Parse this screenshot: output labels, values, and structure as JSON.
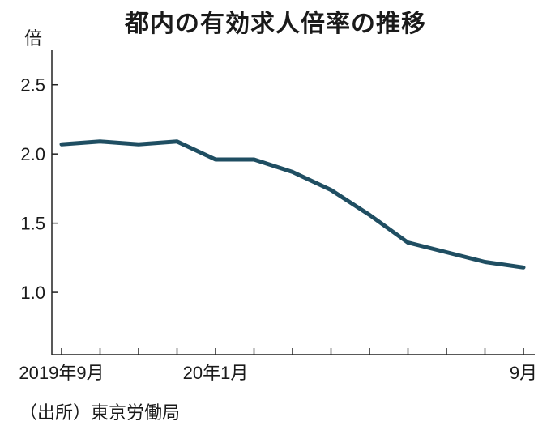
{
  "chart_data": {
    "type": "line",
    "title": "都内の有効求人倍率の推移",
    "ylabel": "倍",
    "source": "（出所）東京労働局",
    "x_labels": [
      "2019年9月",
      "20年1月",
      "9月"
    ],
    "x": [
      "2019-09",
      "2019-10",
      "2019-11",
      "2019-12",
      "2020-01",
      "2020-02",
      "2020-03",
      "2020-04",
      "2020-05",
      "2020-06",
      "2020-07",
      "2020-08",
      "2020-09"
    ],
    "series": [
      {
        "values": [
          2.07,
          2.09,
          2.07,
          2.09,
          1.96,
          1.96,
          1.87,
          1.74,
          1.56,
          1.36,
          1.29,
          1.22,
          1.18
        ]
      }
    ],
    "ylim": [
      0.55,
      2.75
    ],
    "yticks": [
      "2.5",
      "2.0",
      "1.5",
      "1.0"
    ],
    "ytick_values": [
      2.5,
      2.0,
      1.5,
      1.0
    ],
    "line_color": "#1f4e62",
    "grid": false
  }
}
